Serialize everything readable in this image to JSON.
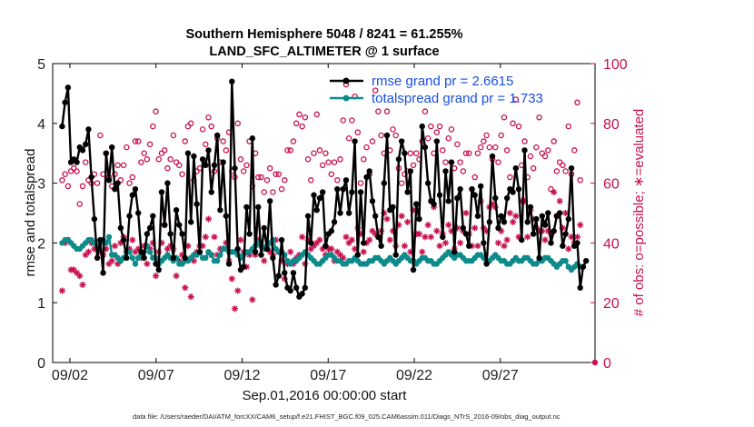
{
  "chart_data": {
    "type": "line",
    "title_line1": "Southern Hemisphere 5048 / 8241 = 61.255%",
    "title_line2": "LAND_SFC_ALTIMETER @ 1 surface",
    "xlabel": "Sep.01,2016 00:00:00 start",
    "ylabel": "rmse and totalspread",
    "ylabel_right": "# of obs: o=possible; ∗=evaluated",
    "xlim": [
      0,
      31.5
    ],
    "ylim": [
      0,
      5
    ],
    "ylim_right": [
      0,
      100
    ],
    "x_ticks": [
      1,
      6,
      11,
      16,
      21,
      26
    ],
    "x_tick_labels": [
      "09/02",
      "09/07",
      "09/12",
      "09/17",
      "09/22",
      "09/27"
    ],
    "y_ticks": [
      0,
      1,
      2,
      3,
      4,
      5
    ],
    "y_tick_labels": [
      "0",
      "1",
      "2",
      "3",
      "4",
      "5"
    ],
    "y_right_ticks": [
      0,
      20,
      40,
      60,
      80,
      100
    ],
    "y_right_tick_labels": [
      "0",
      "20",
      "40",
      "60",
      "80",
      "100"
    ],
    "footnote": "data file: /Users/raeder/DAI/ATM_forcXX/CAM6_setup/f.e21.FHIST_BGC.f09_025.CAM6assim.011/Diags_NTrS_2016-09/obs_diag_output.nc",
    "series": [
      {
        "name": "rmse grand pr = 2.6615",
        "color": "#000000",
        "marker": "dot",
        "values": [
          3.95,
          4.35,
          4.6,
          3.35,
          3.4,
          3.35,
          3.6,
          3.55,
          3.65,
          3.9,
          3.1,
          2.4,
          1.75,
          2.05,
          1.5,
          3.5,
          3.05,
          3.6,
          2.9,
          3.0,
          2.25,
          2.05,
          1.75,
          2.45,
          2.8,
          2.9,
          2.5,
          1.85,
          1.75,
          2.15,
          2.25,
          2.45,
          1.65,
          1.55,
          2.85,
          2.3,
          3.0,
          2.15,
          1.75,
          2.55,
          2.3,
          2.15,
          1.75,
          3.5,
          2.35,
          3.45,
          2.65,
          1.85,
          3.4,
          3.3,
          3.55,
          2.85,
          3.3,
          3.8,
          2.55,
          3.35,
          2.45,
          1.65,
          4.7,
          3.25,
          1.9,
          1.55,
          1.6,
          2.6,
          2.15,
          3.75,
          1.85,
          2.6,
          1.8,
          2.25,
          1.9,
          2.7,
          1.75,
          1.3,
          1.45,
          2.05,
          1.5,
          1.25,
          1.2,
          1.5,
          1.25,
          1.1,
          1.15,
          1.25,
          2.45,
          2.0,
          2.8,
          2.55,
          2.75,
          2.85,
          1.95,
          2.15,
          2.2,
          2.35,
          2.9,
          2.5,
          2.9,
          3.05,
          2.5,
          2.85,
          3.7,
          1.8,
          2.85,
          2.0,
          3.1,
          3.2,
          2.7,
          2.45,
          2.1,
          1.95,
          3.0,
          3.8,
          2.55,
          2.6,
          1.8,
          3.4,
          3.7,
          3.5,
          2.85,
          3.2,
          1.55,
          2.65,
          2.4,
          3.95,
          3.6,
          3.0,
          2.7,
          2.65,
          3.7,
          2.8,
          2.1,
          3.2,
          2.7,
          3.35,
          1.85,
          2.75,
          2.9,
          2.25,
          2.15,
          1.95,
          2.9,
          2.8,
          2.45,
          2.95,
          2.0,
          1.65,
          2.35,
          3.45,
          2.75,
          2.25,
          2.45,
          2.35,
          2.75,
          2.9,
          2.85,
          3.25,
          2.9,
          2.05,
          3.55,
          2.35,
          2.6,
          2.15,
          2.4,
          1.75,
          2.45,
          2.3,
          2.5,
          2.0,
          2.2,
          2.45,
          2.5,
          1.95,
          2.15,
          2.4,
          3.25,
          1.95,
          2.0,
          1.25,
          1.6,
          1.7
        ]
      },
      {
        "name": "totalspread grand pr = 1.733",
        "color": "#0e8a8a",
        "marker": "dot",
        "values": [
          2.0,
          2.05,
          2.05,
          2.0,
          1.95,
          1.9,
          1.9,
          1.95,
          2.0,
          2.05,
          2.05,
          2.0,
          1.95,
          2.0,
          2.05,
          2.0,
          2.1,
          1.8,
          1.8,
          1.75,
          1.7,
          1.75,
          1.85,
          1.85,
          1.75,
          1.65,
          1.75,
          1.8,
          1.85,
          1.95,
          1.85,
          1.75,
          1.75,
          1.65,
          1.7,
          1.75,
          1.8,
          1.75,
          1.7,
          1.75,
          1.65,
          1.65,
          1.7,
          1.7,
          1.75,
          1.8,
          1.8,
          1.85,
          1.75,
          1.75,
          1.85,
          1.8,
          1.7,
          1.7,
          1.8,
          1.9,
          1.9,
          1.85,
          1.85,
          1.85,
          1.8,
          1.75,
          1.8,
          1.85,
          1.85,
          1.9,
          1.95,
          2.0,
          1.95,
          1.9,
          1.95,
          2.0,
          2.05,
          1.9,
          1.85,
          1.85,
          1.8,
          1.7,
          1.65,
          1.7,
          1.7,
          1.75,
          1.8,
          1.85,
          1.8,
          1.75,
          1.7,
          1.65,
          1.65,
          1.7,
          1.75,
          1.8,
          1.8,
          1.75,
          1.7,
          1.7,
          1.65,
          1.65,
          1.7,
          1.7,
          1.75,
          1.7,
          1.65,
          1.65,
          1.65,
          1.7,
          1.7,
          1.75,
          1.75,
          1.7,
          1.65,
          1.7,
          1.75,
          1.7,
          1.65,
          1.7,
          1.75,
          1.8,
          1.75,
          1.7,
          1.7,
          1.65,
          1.7,
          1.75,
          1.75,
          1.7,
          1.7,
          1.65,
          1.65,
          1.7,
          1.75,
          1.8,
          1.85,
          1.8,
          1.75,
          1.8,
          1.8,
          1.75,
          1.7,
          1.7,
          1.7,
          1.75,
          1.8,
          1.8,
          1.75,
          1.7,
          1.7,
          1.75,
          1.8,
          1.75,
          1.7,
          1.7,
          1.65,
          1.65,
          1.7,
          1.75,
          1.7,
          1.7,
          1.75,
          1.75,
          1.7,
          1.65,
          1.65,
          1.7,
          1.7,
          1.75,
          1.75,
          1.7,
          1.65,
          1.6,
          1.65,
          1.7,
          1.7,
          1.6,
          1.55,
          1.6,
          1.65,
          1.6
        ]
      },
      {
        "name": "obs possible",
        "axis": "right",
        "color": "#c8104f",
        "marker": "circle",
        "values": [
          61,
          63,
          59,
          64,
          65,
          64,
          53,
          59,
          67,
          61,
          60,
          63,
          60,
          76,
          63,
          70,
          62,
          59,
          63,
          66,
          61,
          66,
          72,
          60,
          62,
          74,
          74,
          67,
          70,
          68,
          73,
          79,
          84,
          68,
          70,
          71,
          65,
          68,
          76,
          67,
          66,
          63,
          74,
          79,
          80,
          61,
          64,
          65,
          78,
          73,
          82,
          79,
          64,
          75,
          67,
          74,
          71,
          77,
          64,
          62,
          80,
          68,
          64,
          66,
          74,
          59,
          70,
          62,
          62,
          57,
          61,
          65,
          57,
          63,
          63,
          58,
          61,
          71,
          71,
          74,
          80,
          83,
          79,
          82,
          68,
          61,
          70,
          83,
          71,
          66,
          70,
          67,
          63,
          67,
          61,
          68,
          81,
          93,
          75,
          81,
          89,
          77,
          60,
          68,
          72,
          63,
          74,
          91,
          84,
          76,
          70,
          84,
          71,
          78,
          76,
          65,
          60,
          63,
          64,
          70,
          66,
          70,
          68,
          74,
          84,
          75,
          79,
          70,
          77,
          79,
          71,
          67,
          75,
          78,
          65,
          73,
          67,
          64,
          70,
          70,
          58,
          62,
          70,
          72,
          74,
          76,
          72,
          68,
          72,
          67,
          76,
          82,
          71,
          62,
          80,
          88,
          79,
          66,
          74,
          62,
          69,
          65,
          72,
          82,
          70,
          69,
          71,
          58,
          74,
          64,
          67,
          66,
          64,
          79,
          63,
          71,
          87,
          61
        ]
      },
      {
        "name": "obs evaluated",
        "axis": "right",
        "color": "#c8104f",
        "marker": "star",
        "values": [
          24,
          40,
          41,
          31,
          31,
          30,
          29,
          26,
          36,
          37,
          40,
          38,
          39,
          37,
          36,
          38,
          33,
          34,
          39,
          33,
          40,
          42,
          37,
          38,
          41,
          37,
          38,
          35,
          39,
          33,
          38,
          40,
          29,
          37,
          40,
          46,
          38,
          39,
          38,
          29,
          34,
          36,
          25,
          39,
          22,
          34,
          37,
          39,
          39,
          42,
          48,
          36,
          42,
          36,
          38,
          38,
          40,
          34,
          28,
          18,
          24,
          41,
          37,
          32,
          36,
          21,
          36,
          41,
          39,
          34,
          38,
          37,
          36,
          41,
          37,
          34,
          28,
          33,
          37,
          33,
          35,
          36,
          42,
          33,
          41,
          38,
          39,
          40,
          41,
          38,
          36,
          38,
          38,
          34,
          37,
          36,
          35,
          42,
          40,
          41,
          38,
          45,
          43,
          37,
          40,
          41,
          44,
          43,
          42,
          44,
          50,
          48,
          41,
          44,
          39,
          46,
          49,
          39,
          47,
          37,
          51,
          43,
          43,
          37,
          42,
          46,
          42,
          52,
          44,
          39,
          43,
          40,
          46,
          44,
          38,
          45,
          40,
          44,
          50,
          43,
          39,
          45,
          39,
          54,
          45,
          44,
          52,
          53,
          52,
          40,
          44,
          39,
          41,
          50,
          47,
          49,
          42,
          54,
          54,
          42,
          51,
          48,
          45,
          44,
          44,
          41,
          44,
          43,
          57,
          49,
          54,
          45,
          50,
          38,
          42,
          40,
          42,
          46
        ]
      }
    ]
  }
}
